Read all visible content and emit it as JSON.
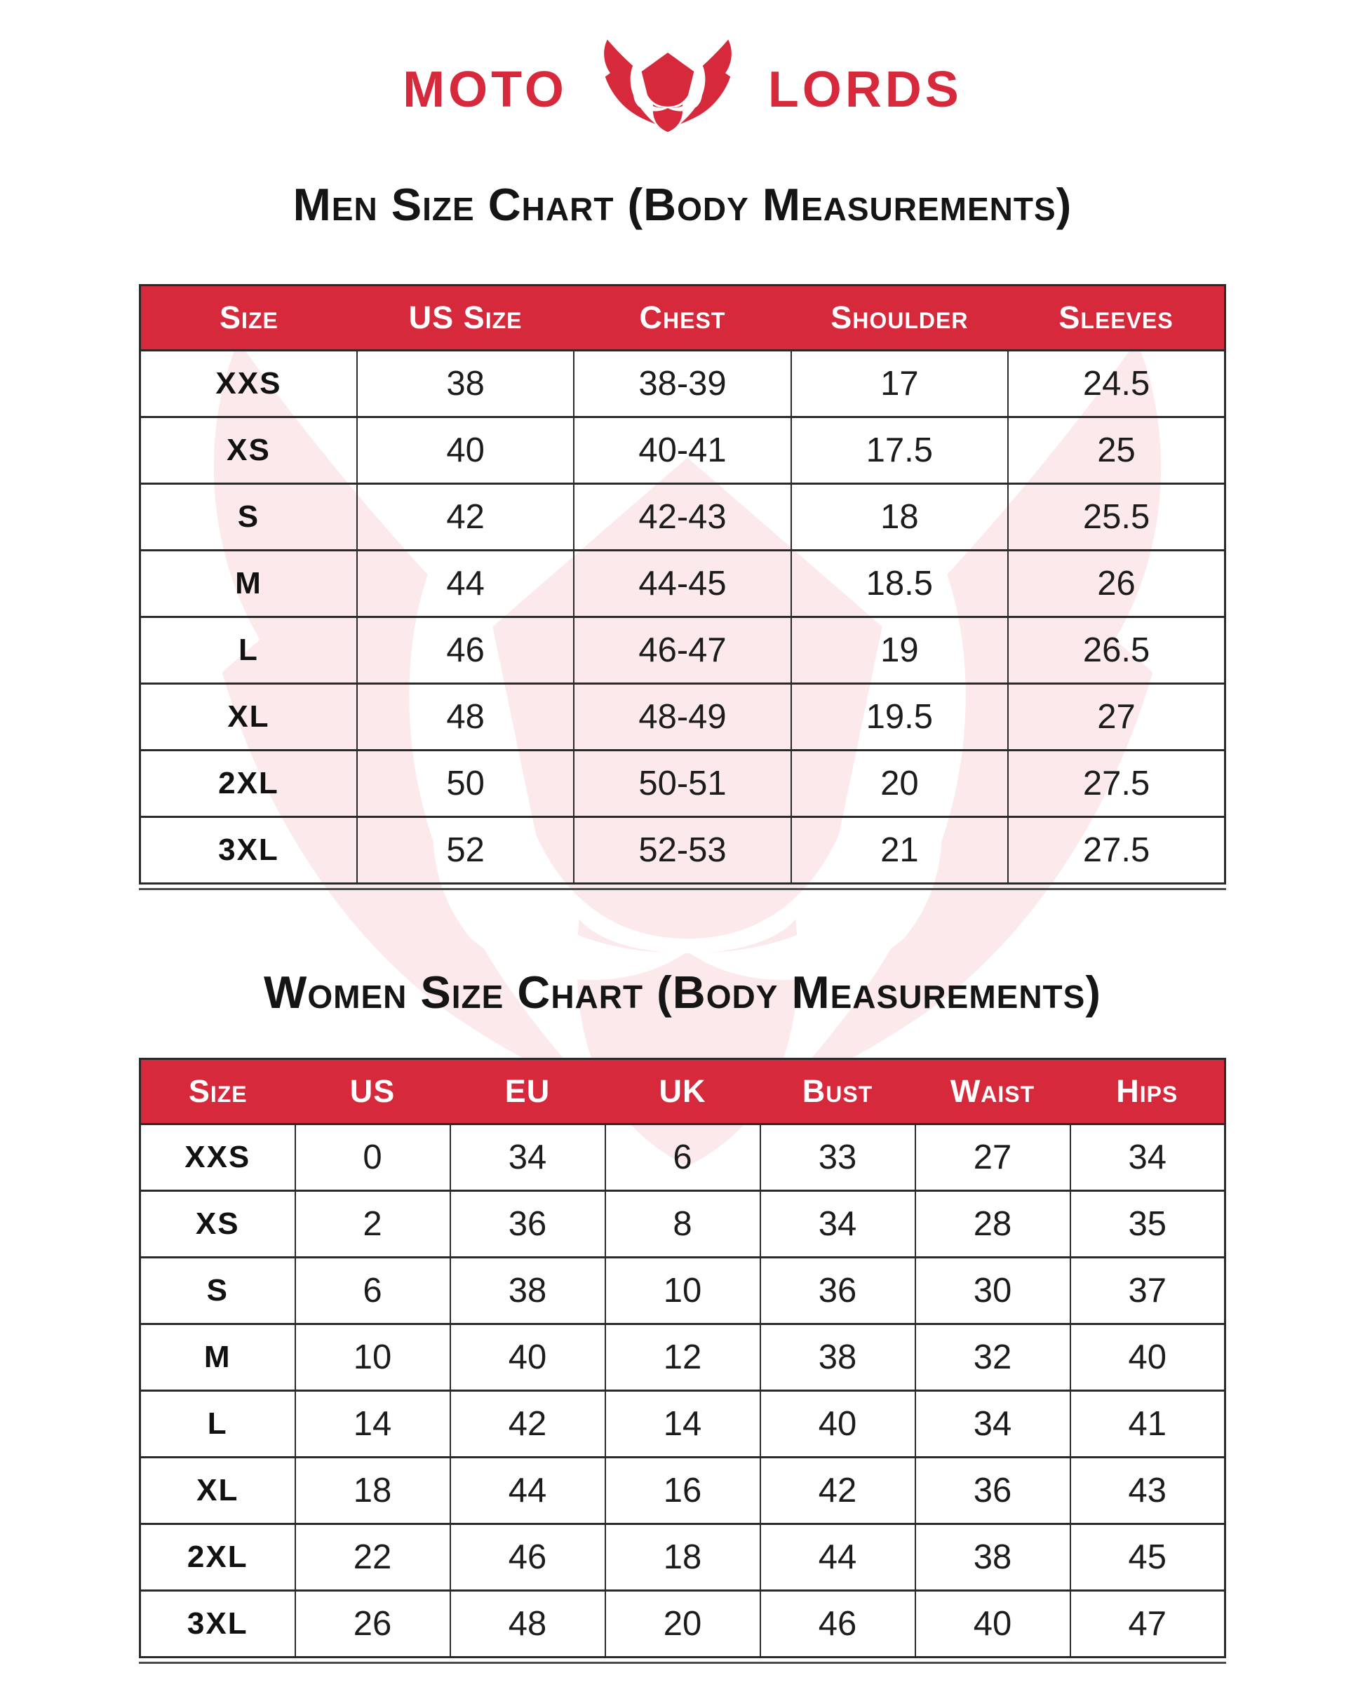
{
  "logo": {
    "word_left": "MOTO",
    "word_right": "LORDS",
    "icon": "bull-head-icon",
    "brand_color": "#d6293c"
  },
  "men_chart": {
    "title": "Men Size Chart (Body Measurements)",
    "headers": [
      "Size",
      "US Size",
      "Chest",
      "Shoulder",
      "Sleeves"
    ],
    "rows": [
      [
        "XXS",
        "38",
        "38-39",
        "17",
        "24.5"
      ],
      [
        "XS",
        "40",
        "40-41",
        "17.5",
        "25"
      ],
      [
        "S",
        "42",
        "42-43",
        "18",
        "25.5"
      ],
      [
        "M",
        "44",
        "44-45",
        "18.5",
        "26"
      ],
      [
        "L",
        "46",
        "46-47",
        "19",
        "26.5"
      ],
      [
        "XL",
        "48",
        "48-49",
        "19.5",
        "27"
      ],
      [
        "2XL",
        "50",
        "50-51",
        "20",
        "27.5"
      ],
      [
        "3XL",
        "52",
        "52-53",
        "21",
        "27.5"
      ]
    ]
  },
  "women_chart": {
    "title": "Women Size Chart (Body Measurements)",
    "headers": [
      "Size",
      "US",
      "EU",
      "UK",
      "Bust",
      "Waist",
      "Hips"
    ],
    "rows": [
      [
        "XXS",
        "0",
        "34",
        "6",
        "33",
        "27",
        "34"
      ],
      [
        "XS",
        "2",
        "36",
        "8",
        "34",
        "28",
        "35"
      ],
      [
        "S",
        "6",
        "38",
        "10",
        "36",
        "30",
        "37"
      ],
      [
        "M",
        "10",
        "40",
        "12",
        "38",
        "32",
        "40"
      ],
      [
        "L",
        "14",
        "42",
        "14",
        "40",
        "34",
        "41"
      ],
      [
        "XL",
        "18",
        "44",
        "16",
        "42",
        "36",
        "43"
      ],
      [
        "2XL",
        "22",
        "46",
        "18",
        "44",
        "38",
        "45"
      ],
      [
        "3XL",
        "26",
        "48",
        "20",
        "46",
        "40",
        "47"
      ]
    ]
  },
  "colors": {
    "accent_red": "#d6293c",
    "watermark_pink": "#fbe9ec",
    "border": "#2a2a2a",
    "text": "#1c1c1c"
  }
}
